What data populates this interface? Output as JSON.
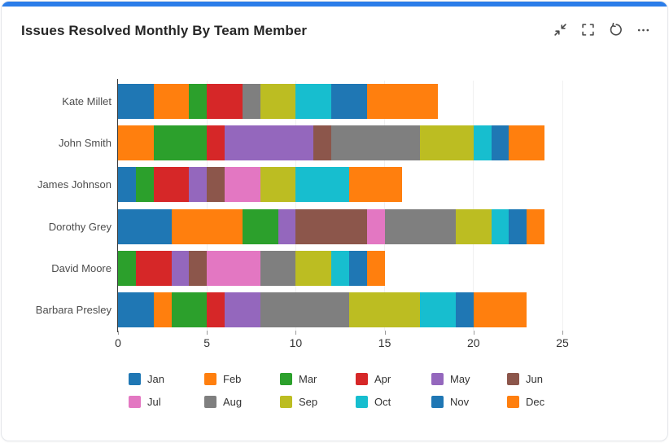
{
  "card": {
    "title": "Issues Resolved Monthly By Team Member",
    "accent_color": "#2b7de9",
    "toolbar": {
      "collapse": "collapse-icon",
      "fullscreen": "fullscreen-icon",
      "refresh": "refresh-icon",
      "more": "more-icon"
    }
  },
  "axis": {
    "tick_labels": [
      "0",
      "5",
      "10",
      "15",
      "20",
      "25"
    ]
  },
  "chart_data": {
    "type": "bar",
    "orientation": "horizontal",
    "stacked": true,
    "title": "Issues Resolved Monthly By Team Member",
    "categories": [
      "Kate Millet",
      "John Smith",
      "James Johnson",
      "Dorothy Grey",
      "David Moore",
      "Barbara Presley"
    ],
    "series": [
      {
        "name": "Jan",
        "color": "#1f77b4",
        "values": [
          2,
          0,
          1,
          3,
          0,
          2
        ]
      },
      {
        "name": "Feb",
        "color": "#ff7f0e",
        "values": [
          2,
          2,
          0,
          4,
          0,
          1
        ]
      },
      {
        "name": "Mar",
        "color": "#2ca02c",
        "values": [
          1,
          3,
          1,
          2,
          1,
          2
        ]
      },
      {
        "name": "Apr",
        "color": "#d62728",
        "values": [
          2,
          1,
          2,
          0,
          2,
          1
        ]
      },
      {
        "name": "May",
        "color": "#9467bd",
        "values": [
          0,
          5,
          1,
          1,
          1,
          2
        ]
      },
      {
        "name": "Jun",
        "color": "#8c564b",
        "values": [
          0,
          1,
          1,
          4,
          1,
          0
        ]
      },
      {
        "name": "Jul",
        "color": "#e377c2",
        "values": [
          0,
          0,
          2,
          1,
          3,
          0
        ]
      },
      {
        "name": "Aug",
        "color": "#7f7f7f",
        "values": [
          1,
          5,
          0,
          4,
          2,
          5
        ]
      },
      {
        "name": "Sep",
        "color": "#bcbd22",
        "values": [
          2,
          3,
          2,
          2,
          2,
          4
        ]
      },
      {
        "name": "Oct",
        "color": "#17becf",
        "values": [
          2,
          1,
          3,
          1,
          1,
          2
        ]
      },
      {
        "name": "Nov",
        "color": "#1f77b4",
        "values": [
          2,
          1,
          0,
          1,
          1,
          1
        ]
      },
      {
        "name": "Dec",
        "color": "#ff7f0e",
        "values": [
          4,
          2,
          3,
          1,
          1,
          3
        ]
      }
    ],
    "totals": [
      18,
      24,
      16,
      24,
      15,
      23
    ],
    "x_ticks": [
      0,
      5,
      10,
      15,
      20,
      25
    ],
    "xlim": [
      0,
      25
    ],
    "grid": true,
    "legend_position": "bottom"
  }
}
